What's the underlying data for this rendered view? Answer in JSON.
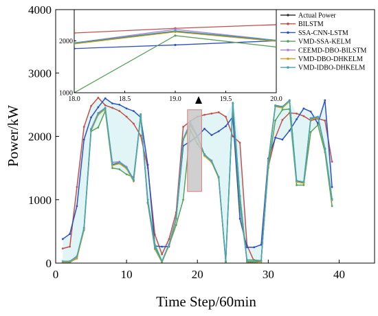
{
  "chart_data": {
    "type": "line",
    "xlabel": "Time Step/60min",
    "ylabel": "Power/kW",
    "xlim": [
      0,
      45
    ],
    "ylim": [
      0,
      4000
    ],
    "x_ticks": [
      0,
      10,
      20,
      30,
      40
    ],
    "y_ticks": [
      0,
      1000,
      2000,
      3000,
      4000
    ],
    "grid": false,
    "legend_position": "inside inset, right",
    "x": [
      1,
      2,
      3,
      4,
      5,
      6,
      7,
      8,
      9,
      10,
      11,
      12,
      13,
      14,
      15,
      16,
      17,
      18,
      19,
      20,
      21,
      22,
      23,
      24,
      25,
      26,
      27,
      28,
      29,
      30,
      31,
      32,
      33,
      34,
      35,
      36,
      37,
      38,
      39
    ],
    "series": [
      {
        "name": "Actual Power",
        "color": "#333333",
        "values": [
          20,
          20,
          100,
          550,
          2100,
          2350,
          2440,
          1550,
          1580,
          1500,
          1300,
          2340,
          950,
          230,
          20,
          290,
          700,
          1950,
          2180,
          2000,
          1700,
          1600,
          1350,
          20,
          2520,
          1050,
          20,
          20,
          30,
          1600,
          2480,
          2460,
          2560,
          1290,
          1270,
          2280,
          2300,
          1800,
          1000
        ]
      },
      {
        "name": "BILSTM",
        "color": "#c0504d",
        "values": [
          230,
          260,
          1200,
          2150,
          2480,
          2610,
          2490,
          2450,
          2400,
          2310,
          2200,
          2010,
          1500,
          450,
          140,
          380,
          800,
          2150,
          2240,
          2310,
          2340,
          2360,
          2380,
          2310,
          2000,
          1900,
          280,
          30,
          40,
          1520,
          1980,
          2260,
          2370,
          2360,
          2320,
          2250,
          2280,
          2250,
          1600
        ]
      },
      {
        "name": "SSA-CNN-LSTM",
        "color": "#2e4fbf",
        "values": [
          380,
          460,
          900,
          1950,
          2300,
          2460,
          2600,
          2520,
          2500,
          2440,
          2400,
          2300,
          1550,
          270,
          260,
          260,
          700,
          1850,
          1920,
          2000,
          2120,
          2020,
          2080,
          2160,
          2310,
          700,
          250,
          250,
          290,
          1650,
          1980,
          1950,
          2090,
          2270,
          2440,
          2390,
          2200,
          2570,
          1200
        ]
      },
      {
        "name": "VMD-SSA-KELM",
        "color": "#5aa05a",
        "values": [
          10,
          10,
          80,
          520,
          2080,
          2140,
          2400,
          1500,
          1480,
          1400,
          1360,
          2310,
          1000,
          290,
          30,
          280,
          600,
          1000,
          2100,
          1880,
          1720,
          1600,
          1350,
          30,
          2510,
          900,
          50,
          50,
          40,
          1500,
          2250,
          2420,
          2430,
          1230,
          1230,
          2070,
          2180,
          1750,
          900
        ]
      },
      {
        "name": "CEEMD-DBO-BILSTM",
        "color": "#b07cd8",
        "values": [
          20,
          30,
          90,
          560,
          2120,
          2370,
          2450,
          1590,
          1600,
          1520,
          1320,
          2350,
          960,
          240,
          20,
          290,
          710,
          1960,
          2220,
          2010,
          1710,
          1620,
          1360,
          30,
          2530,
          1060,
          30,
          30,
          40,
          1610,
          2490,
          2470,
          2570,
          1300,
          1280,
          2290,
          2310,
          1810,
          1010
        ]
      },
      {
        "name": "VMD-DBO-DHKELM",
        "color": "#c9a227",
        "values": [
          10,
          20,
          70,
          540,
          2090,
          2340,
          2430,
          1540,
          1570,
          1490,
          1290,
          2330,
          940,
          220,
          10,
          280,
          690,
          1940,
          2170,
          1990,
          1690,
          1590,
          1340,
          10,
          2510,
          1040,
          10,
          10,
          20,
          1590,
          2470,
          2450,
          2550,
          1280,
          1260,
          2270,
          2290,
          1790,
          990
        ]
      },
      {
        "name": "VMD-IDBO-DHKELM",
        "color": "#3fa7b5",
        "values": [
          30,
          30,
          110,
          560,
          2110,
          2360,
          2450,
          1560,
          1590,
          1510,
          1310,
          2350,
          960,
          240,
          30,
          300,
          710,
          1960,
          2190,
          2010,
          1710,
          1610,
          1360,
          30,
          2530,
          1060,
          30,
          30,
          40,
          1610,
          2490,
          2470,
          2570,
          1300,
          1280,
          2290,
          2310,
          1810,
          1010
        ]
      }
    ],
    "inset": {
      "xlim": [
        18.0,
        20.0
      ],
      "ylim": [
        1000,
        2600
      ],
      "x_ticks": [
        "18.0",
        "18.5",
        "19.0",
        "19.5",
        "20.0"
      ],
      "y_ticks": [
        "1000",
        "2000"
      ]
    }
  }
}
